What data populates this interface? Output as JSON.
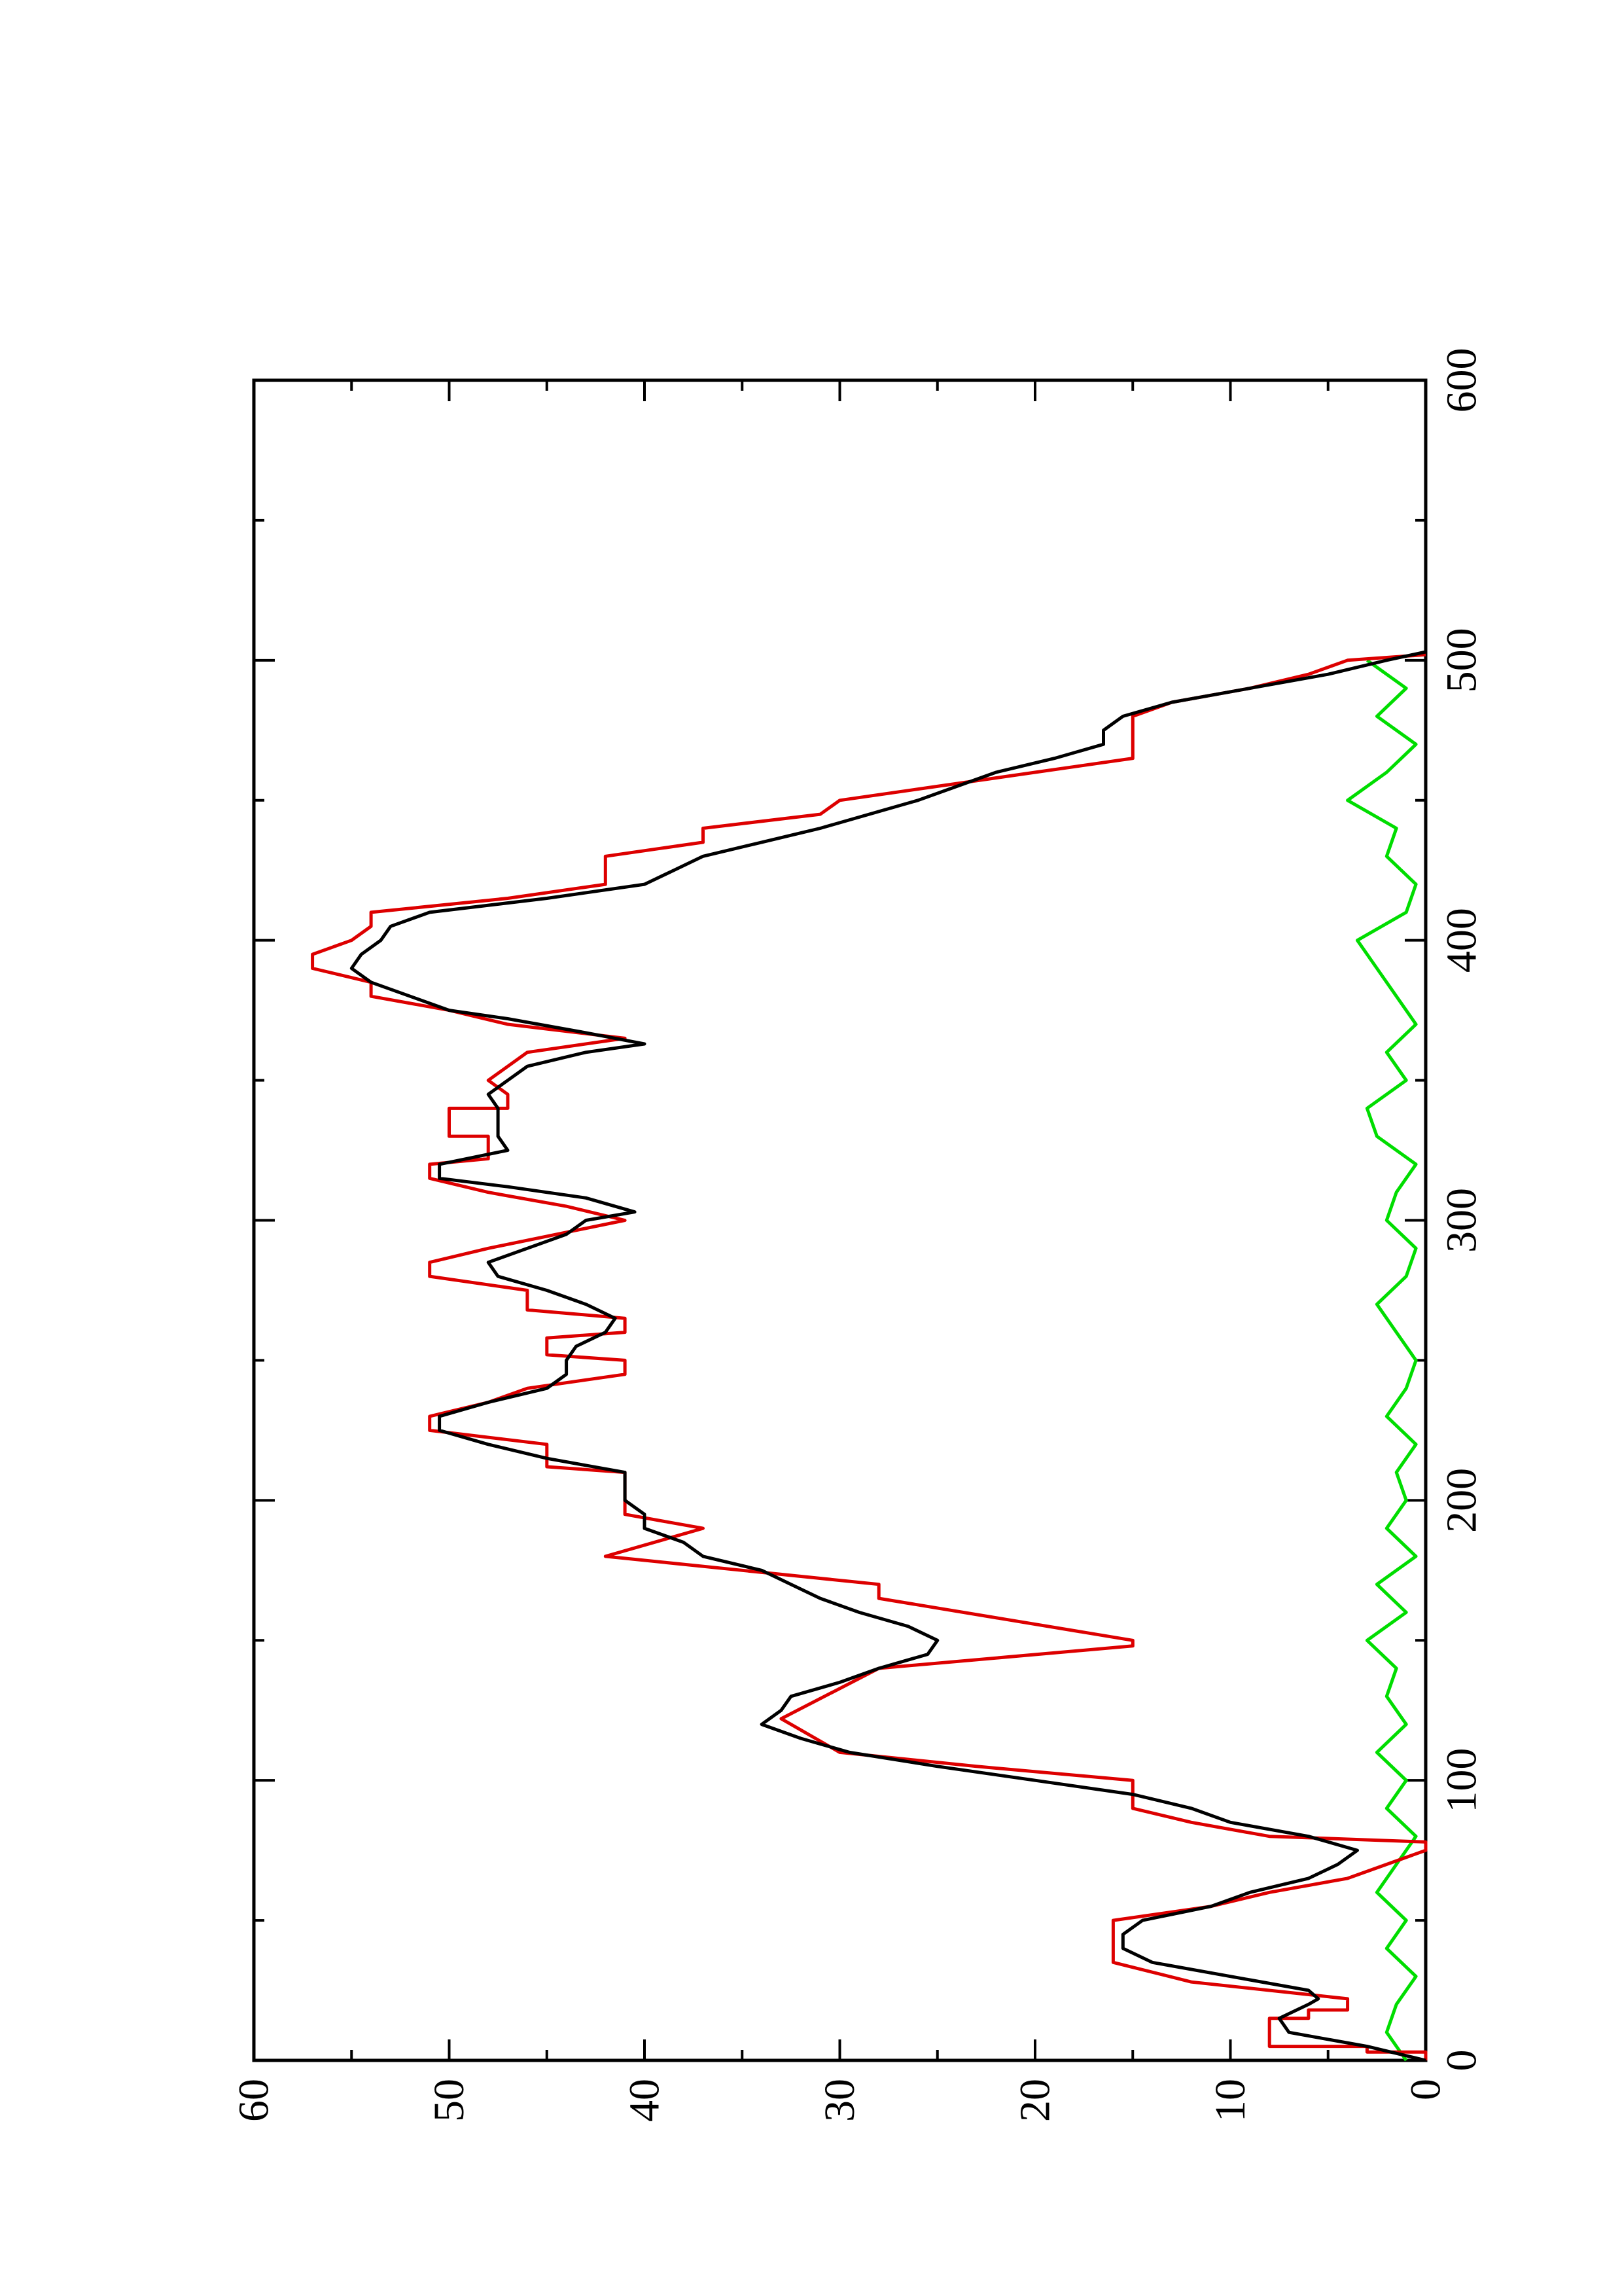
{
  "chart_data": {
    "type": "line",
    "xlim": [
      0,
      600
    ],
    "xticks": [
      0,
      100,
      200,
      300,
      400,
      500,
      600
    ],
    "ylim": [
      0,
      60
    ],
    "yticks": [
      0,
      10,
      20,
      30,
      40,
      50,
      60
    ],
    "series": [
      {
        "color": "#000000",
        "x": [
          0,
          5,
          10,
          15,
          20,
          22,
          25,
          30,
          35,
          40,
          45,
          50,
          55,
          60,
          65,
          70,
          75,
          80,
          85,
          90,
          95,
          100,
          105,
          110,
          115,
          120,
          125,
          130,
          135,
          140,
          145,
          150,
          155,
          160,
          165,
          170,
          175,
          180,
          185,
          190,
          195,
          200,
          210,
          215,
          220,
          225,
          230,
          235,
          240,
          245,
          250,
          255,
          260,
          265,
          270,
          275,
          280,
          285,
          290,
          295,
          300,
          303,
          308,
          312,
          315,
          320,
          325,
          330,
          340,
          345,
          350,
          355,
          360,
          363,
          367,
          372,
          375,
          380,
          385,
          390,
          395,
          400,
          405,
          410,
          415,
          420,
          425,
          430,
          435,
          440,
          445,
          450,
          455,
          460,
          465,
          470,
          475,
          480,
          485,
          490,
          495,
          500,
          503
        ],
        "values": [
          0,
          3,
          7,
          7.5,
          6,
          5.5,
          6,
          10,
          14,
          15.5,
          15.5,
          14.5,
          11,
          9,
          6,
          4.5,
          3.5,
          6,
          10,
          12,
          15,
          20,
          25,
          29.5,
          32,
          34,
          33,
          32.5,
          30,
          28,
          25.5,
          25,
          26.5,
          29,
          31,
          32.5,
          34,
          37,
          38,
          40,
          40,
          41,
          41,
          45,
          48,
          50.5,
          50.5,
          48,
          45,
          44,
          44,
          43.5,
          42,
          41.5,
          43,
          45,
          47.5,
          48,
          46,
          44,
          43,
          40.5,
          43,
          47,
          50.5,
          50.5,
          47,
          47.5,
          47.5,
          48,
          47,
          46,
          43,
          40,
          43,
          47,
          50,
          52,
          54,
          55,
          54.5,
          53.5,
          53,
          51,
          45,
          40,
          38.5,
          37,
          34,
          31,
          28.5,
          26,
          24,
          22,
          19,
          16.5,
          16.5,
          15.5,
          13,
          9,
          5,
          2,
          0
        ]
      },
      {
        "color": "#dd0000",
        "x": [
          0,
          3,
          3,
          5,
          5,
          15,
          15,
          18,
          18,
          22,
          28,
          35,
          50,
          55,
          60,
          65,
          75,
          78,
          80,
          85,
          90,
          100,
          105,
          110,
          120,
          122,
          140,
          148,
          150,
          165,
          170,
          175,
          180,
          190,
          195,
          210,
          212,
          220,
          225,
          230,
          235,
          240,
          245,
          250,
          252,
          258,
          260,
          265,
          268,
          275,
          280,
          285,
          290,
          300,
          305,
          310,
          315,
          320,
          322,
          330,
          330,
          335,
          340,
          340,
          345,
          350,
          360,
          365,
          370,
          375,
          380,
          385,
          390,
          395,
          400,
          405,
          410,
          415,
          420,
          430,
          435,
          440,
          445,
          450,
          455,
          460,
          465,
          480,
          485,
          490,
          495,
          500,
          502
        ],
        "values": [
          0,
          0,
          3,
          3,
          8,
          8,
          6,
          6,
          4,
          4,
          12,
          16,
          16,
          11,
          8,
          4,
          0,
          0,
          8,
          12,
          15,
          15,
          23,
          30,
          32.5,
          33,
          28,
          15,
          15,
          28,
          28,
          35,
          42,
          37,
          41,
          41,
          45,
          45,
          51,
          51,
          48,
          46,
          41,
          41,
          45,
          45,
          41,
          41,
          46,
          46,
          51,
          51,
          48,
          41,
          44,
          48,
          51,
          51,
          48,
          48,
          50,
          50,
          50,
          47,
          47,
          48,
          46,
          41,
          47,
          50,
          54,
          54,
          57,
          57,
          55,
          54,
          54,
          47,
          42,
          42,
          37,
          37,
          31,
          30,
          25,
          20,
          15,
          15,
          13,
          9,
          6,
          4,
          0
        ]
      },
      {
        "color": "#00dd00",
        "x": [
          0,
          10,
          20,
          30,
          40,
          50,
          60,
          70,
          80,
          90,
          100,
          110,
          120,
          130,
          140,
          150,
          160,
          170,
          180,
          190,
          200,
          210,
          220,
          230,
          240,
          250,
          260,
          270,
          280,
          290,
          300,
          310,
          320,
          330,
          340,
          350,
          360,
          370,
          380,
          390,
          400,
          410,
          420,
          430,
          440,
          450,
          460,
          470,
          480,
          490,
          500
        ],
        "values": [
          1,
          2,
          1.5,
          0.5,
          2,
          1,
          2.5,
          1.5,
          0.5,
          2,
          1,
          2.5,
          1,
          2,
          1.5,
          3,
          1,
          2.5,
          0.5,
          2,
          1,
          1.5,
          0.5,
          2,
          1,
          0.5,
          1.5,
          2.5,
          1,
          0.5,
          2,
          1.5,
          0.5,
          2.5,
          3,
          1,
          2,
          0.5,
          1.5,
          2.5,
          3.5,
          1,
          0.5,
          2,
          1.5,
          4,
          2,
          0.5,
          2.5,
          1,
          3
        ]
      }
    ]
  }
}
